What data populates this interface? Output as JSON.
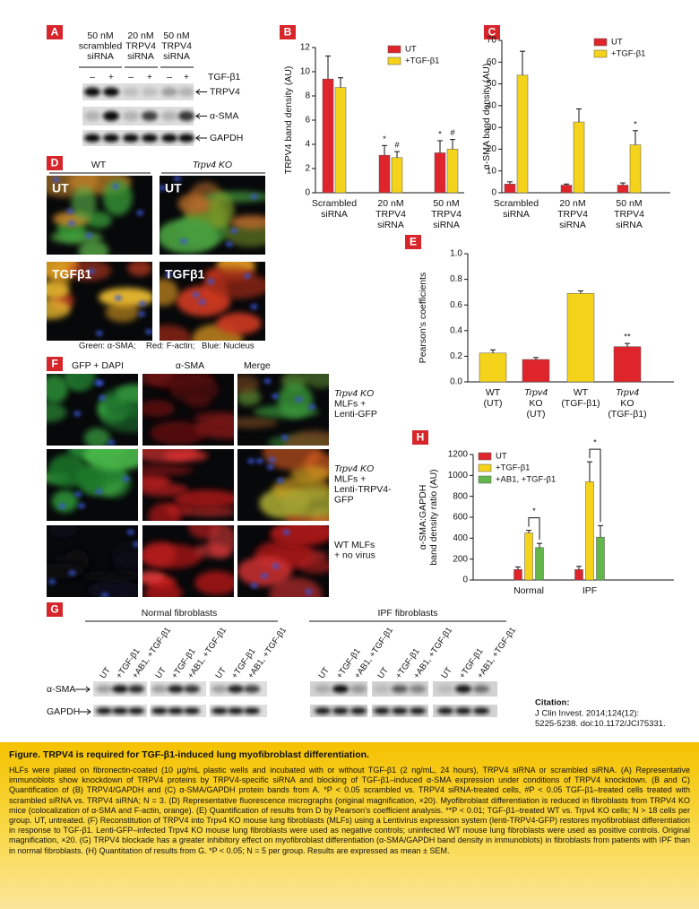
{
  "panel_labels": [
    "A",
    "B",
    "C",
    "D",
    "E",
    "F",
    "G",
    "H"
  ],
  "panel_a": {
    "lanes": [
      [
        "50 nM",
        "scrambled",
        "siRNA"
      ],
      [
        "20 nM",
        "TRPV4",
        "siRNA"
      ],
      [
        "50 nM",
        "TRPV4",
        "siRNA"
      ]
    ],
    "treatment": "TGF-β1",
    "signs": [
      "–",
      "+",
      "–",
      "+",
      "–",
      "+"
    ],
    "rows": [
      "TRPV4",
      "α-SMA",
      "GAPDH"
    ]
  },
  "chart_data": [
    {
      "type": "bar",
      "y_label": [
        "TRPV4 band density (AU)"
      ],
      "categories": [
        [
          "Scrambled",
          "siRNA"
        ],
        [
          "20 nM",
          "TRPV4",
          "siRNA"
        ],
        [
          "50 nM",
          "TRPV4",
          "siRNA"
        ]
      ],
      "series": [
        {
          "name": "UT",
          "color": "#e0242b",
          "values": [
            9.4,
            3.1,
            3.3
          ],
          "errors": [
            1.9,
            0.8,
            1.0
          ],
          "markers": [
            null,
            "*",
            "*"
          ]
        },
        {
          "name": "+TGF-β1",
          "color": "#f5d31a",
          "values": [
            8.7,
            2.9,
            3.6
          ],
          "errors": [
            0.8,
            0.5,
            0.8
          ],
          "markers": [
            null,
            "#",
            "#"
          ]
        }
      ],
      "ylim": [
        0,
        12
      ],
      "yticks": [
        0,
        2,
        4,
        6,
        8,
        10,
        12
      ],
      "legend": "upper right"
    },
    {
      "type": "bar",
      "y_label": [
        "α-SMA band density (AU)"
      ],
      "categories": [
        [
          "Scrambled",
          "siRNA"
        ],
        [
          "20 nM",
          "TRPV4",
          "siRNA"
        ],
        [
          "50 nM",
          "TRPV4",
          "siRNA"
        ]
      ],
      "series": [
        {
          "name": "UT",
          "color": "#e0242b",
          "values": [
            4,
            3.5,
            3.5
          ],
          "errors": [
            1,
            0.5,
            1
          ]
        },
        {
          "name": "+TGF-β1",
          "color": "#f5d31a",
          "values": [
            54,
            32.5,
            22
          ],
          "errors": [
            11,
            6,
            6.5
          ],
          "markers": [
            null,
            null,
            "*"
          ]
        }
      ],
      "ylim": [
        0,
        70
      ],
      "yticks": [
        0,
        10,
        20,
        30,
        40,
        50,
        60,
        70
      ],
      "legend": "upper right"
    },
    {
      "type": "bar",
      "y_label": [
        "Pearson's coefficients"
      ],
      "categories": [
        [
          "WT",
          "(UT)"
        ],
        [
          "Trpv4",
          "KO",
          "(UT)"
        ],
        [
          "WT",
          "(TGF-β1)"
        ],
        [
          "Trpv4",
          "KO",
          "(TGF-β1)"
        ]
      ],
      "values": [
        0.225,
        0.175,
        0.69,
        0.275
      ],
      "errors": [
        0.025,
        0.015,
        0.02,
        0.025
      ],
      "colors": [
        "#f5d31a",
        "#e0242b",
        "#f5d31a",
        "#e0242b"
      ],
      "markers": [
        null,
        null,
        null,
        "**"
      ],
      "ylim": [
        0,
        1
      ],
      "yticks": [
        {
          "value": 0,
          "label": "0.0"
        },
        0.2,
        0.4,
        0.6,
        0.8,
        {
          "value": 1,
          "label": "1.0"
        }
      ]
    },
    {
      "type": "bar",
      "y_label": [
        "α-SMA:GAPDH",
        "band density ratio (AU)"
      ],
      "categories": [
        [
          "Normal"
        ],
        [
          "IPF"
        ]
      ],
      "series": [
        {
          "name": "UT",
          "color": "#e0242b",
          "values": [
            100,
            100
          ],
          "errors": [
            25,
            30
          ]
        },
        {
          "name": "+TGF-β1",
          "color": "#f5d31a",
          "values": [
            450,
            940
          ],
          "errors": [
            25,
            190
          ]
        },
        {
          "name": "+AB1, +TGF-β1",
          "color": "#62b64a",
          "values": [
            310,
            410
          ],
          "errors": [
            40,
            110
          ]
        }
      ],
      "brackets": [
        "*",
        "*"
      ],
      "ylim": [
        0,
        1200
      ],
      "yticks": [
        0,
        200,
        400,
        600,
        800,
        1000,
        1200
      ],
      "legend": "upper left"
    }
  ],
  "panel_d": {
    "columns": [
      "WT",
      "Trpv4 KO"
    ],
    "image_labels": [
      "UT",
      "UT",
      "TGFβ1",
      "TGFβ1"
    ],
    "legend": [
      "Green: α-SMA;",
      "Red: F-actin;",
      "Blue: Nucleus"
    ]
  },
  "panel_f": {
    "columns": [
      "GFP + DAPI",
      "α-SMA",
      "Merge"
    ],
    "rows": [
      [
        "Trpv4 KO",
        "MLFs +",
        "Lenti-GFP"
      ],
      [
        "Trpv4 KO",
        "MLFs +",
        "Lenti-TRPV4-",
        "GFP"
      ],
      [
        "WT MLFs",
        "+ no virus"
      ]
    ]
  },
  "panel_g": {
    "groups": [
      "Normal fibroblasts",
      "IPF fibroblasts"
    ],
    "lanes": [
      [
        "UT",
        "+TGF-β1",
        "+AB1, +TGF-β1",
        "UT",
        "+TGF-β1",
        "+AB1, +TGF-β1",
        "UT",
        "+TGF-β1",
        "+AB1, +TGF-β1"
      ],
      [
        "UT",
        "+TGF-β1",
        "+AB1, +TGF-β1",
        "UT",
        "+TGF-β1",
        "+AB1, +TGF-β1",
        "UT",
        "+TGF-β1",
        "+AB1, +TGF-β1"
      ]
    ],
    "rows": [
      "α-SMA",
      "GAPDH"
    ]
  },
  "citation": {
    "heading": "Citation:",
    "lines": [
      "J Clin Invest. 2014;124(12):",
      "5225-5238. doi:10.1172/JCI75331."
    ]
  },
  "caption": {
    "title": "Figure. TRPV4 is required for TGF-β1-induced lung myofibroblast differentiation.",
    "body": "HLFs were plated on fibronectin-coated (10 μg/mL plastic wells and incubated with or without TGF-β1 (2 ng/mL, 24 hours), TRPV4 siRNA or scrambled siRNA. (A) Representative immunoblots show knockdown of TRPV4 proteins by TRPV4-specific siRNA and blocking of TGF-β1–induced α-SMA expression under conditions of TRPV4 knockdown. (B and C) Quantification of (B) TRPV4/GAPDH and (C) α-SMA/GAPDH protein bands from A. *P < 0.05 scrambled vs. TRPV4 siRNA-treated cells, #P < 0.05 TGF-β1–treated cells treated with scrambled siRNA vs. TRPV4 siRNA; N = 3. (D) Representative fluorescence micrographs (original magnification, ×20). Myofibroblast differentiation is reduced in fibroblasts from TRPV4 KO mice (colocalization of α-SMA and F-actin, orange). (E) Quantification of results from D by Pearson's coefficient analysis. **P < 0.01; TGF-β1–treated WT vs. Trpv4 KO cells; N > 18 cells per group. UT, untreated. (F) Reconstitution of TRPV4 into Trpv4 KO mouse lung fibroblasts (MLFs) using a Lentivirus expression system (lenti-TRPV4-GFP) restores myofibroblast differentiation in response to TGF-β1. Lenti-GFP–infected Trpv4 KO mouse lung fibroblasts were used as negative controls; uninfected WT mouse lung fibroblasts were used as positive controls. Original magnification, ×20. (G) TRPV4 blockade has a greater inhibitory effect on myofibroblast differentiation (α-SMA/GAPDH band density in immunoblots) in fibroblasts from patients with IPF than in normal fibroblasts. (H) Quantitation of results from G. *P < 0.05; N = 5 per group. Results are expressed as mean ± SEM."
  }
}
